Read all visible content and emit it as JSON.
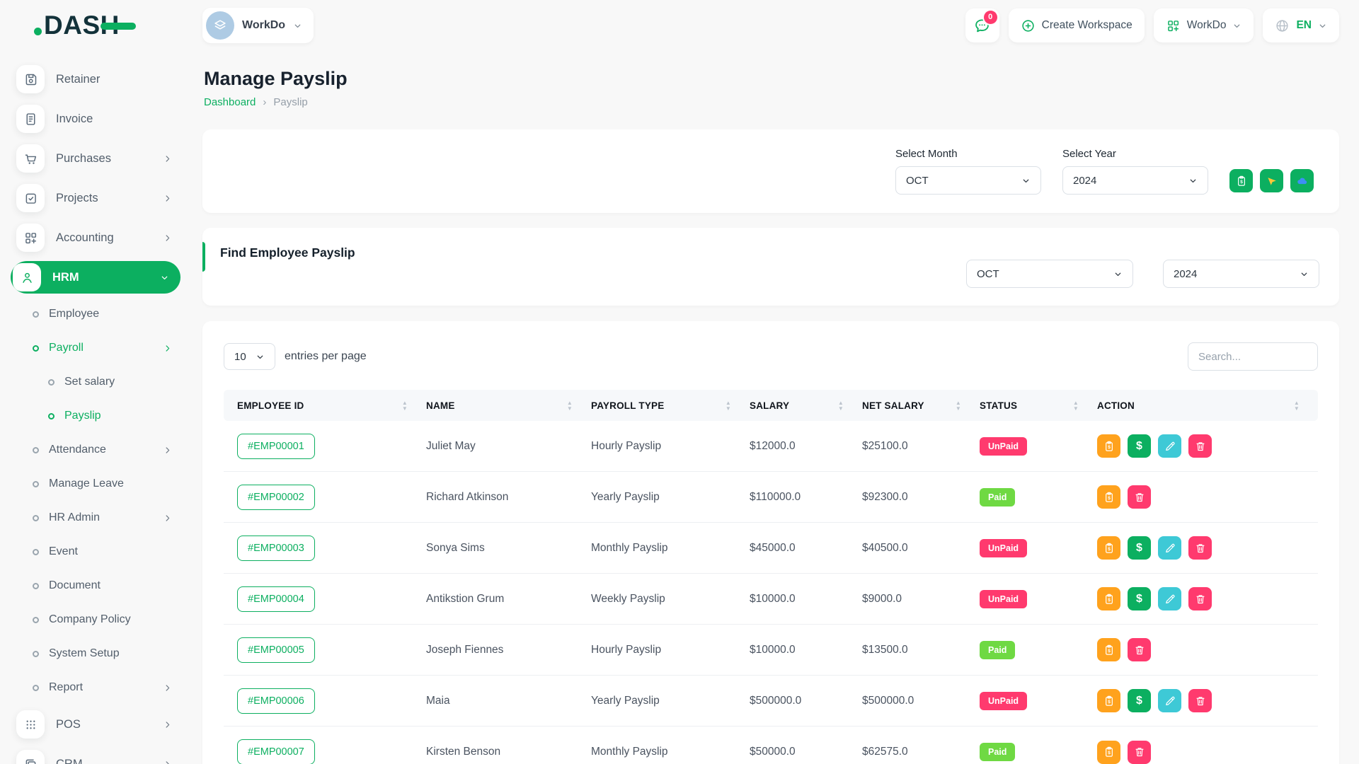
{
  "brand": {
    "name": "DASH"
  },
  "topbar": {
    "workspace_label": "WorkDo",
    "chat_badge": "0",
    "create_workspace_label": "Create Workspace",
    "workdo_label": "WorkDo",
    "language_label": "EN"
  },
  "page": {
    "title": "Manage Payslip",
    "breadcrumb": [
      "Dashboard",
      "Payslip"
    ],
    "breadcrumb_sep": "›"
  },
  "filters": {
    "select_month_label": "Select Month",
    "select_month_value": "OCT",
    "select_year_label": "Select Year",
    "select_year_value": "2024"
  },
  "find_card": {
    "title": "Find Employee Payslip",
    "month_value": "OCT",
    "year_value": "2024"
  },
  "table_controls": {
    "entries_value": "10",
    "entries_label": "entries per page",
    "search_placeholder": "Search..."
  },
  "icons": {
    "dollar_glyph": "$",
    "sort_up": "▲",
    "sort_down": "▼"
  },
  "table": {
    "columns": [
      "EMPLOYEE ID",
      "NAME",
      "PAYROLL TYPE",
      "SALARY",
      "NET SALARY",
      "STATUS",
      "ACTION"
    ],
    "rows": [
      {
        "id": "#EMP00001",
        "name": "Juliet May",
        "type": "Hourly Payslip",
        "salary": "$12000.0",
        "net": "$25100.0",
        "status": "UnPaid",
        "actions": [
          "payslip",
          "pay",
          "edit",
          "delete"
        ]
      },
      {
        "id": "#EMP00002",
        "name": "Richard Atkinson",
        "type": "Yearly Payslip",
        "salary": "$110000.0",
        "net": "$92300.0",
        "status": "Paid",
        "actions": [
          "payslip",
          "delete"
        ]
      },
      {
        "id": "#EMP00003",
        "name": "Sonya Sims",
        "type": "Monthly Payslip",
        "salary": "$45000.0",
        "net": "$40500.0",
        "status": "UnPaid",
        "actions": [
          "payslip",
          "pay",
          "edit",
          "delete"
        ]
      },
      {
        "id": "#EMP00004",
        "name": "Antikstion Grum",
        "type": "Weekly Payslip",
        "salary": "$10000.0",
        "net": "$9000.0",
        "status": "UnPaid",
        "actions": [
          "payslip",
          "pay",
          "edit",
          "delete"
        ]
      },
      {
        "id": "#EMP00005",
        "name": "Joseph Fiennes",
        "type": "Hourly Payslip",
        "salary": "$10000.0",
        "net": "$13500.0",
        "status": "Paid",
        "actions": [
          "payslip",
          "delete"
        ]
      },
      {
        "id": "#EMP00006",
        "name": "Maia",
        "type": "Yearly Payslip",
        "salary": "$500000.0",
        "net": "$500000.0",
        "status": "UnPaid",
        "actions": [
          "payslip",
          "pay",
          "edit",
          "delete"
        ]
      },
      {
        "id": "#EMP00007",
        "name": "Kirsten Benson",
        "type": "Monthly Payslip",
        "salary": "$50000.0",
        "net": "$62575.0",
        "status": "Paid",
        "actions": [
          "payslip",
          "delete"
        ]
      }
    ]
  },
  "sidebar": {
    "items": [
      {
        "label": "Retainer",
        "icon": "save",
        "level": 0
      },
      {
        "label": "Invoice",
        "icon": "doc",
        "level": 0
      },
      {
        "label": "Purchases",
        "icon": "cart",
        "level": 0,
        "chevron": "right"
      },
      {
        "label": "Projects",
        "icon": "check",
        "level": 0,
        "chevron": "right"
      },
      {
        "label": "Accounting",
        "icon": "gridplus",
        "level": 0,
        "chevron": "right"
      },
      {
        "label": "HRM",
        "icon": "hrm",
        "level": 0,
        "chevron": "down",
        "active": true
      },
      {
        "label": "Employee",
        "level": 1
      },
      {
        "label": "Payroll",
        "level": 1,
        "chevron": "right",
        "highlight": true
      },
      {
        "label": "Set salary",
        "level": 2
      },
      {
        "label": "Payslip",
        "level": 2,
        "highlight": true
      },
      {
        "label": "Attendance",
        "level": 1,
        "chevron": "right"
      },
      {
        "label": "Manage Leave",
        "level": 1
      },
      {
        "label": "HR Admin",
        "level": 1,
        "chevron": "right"
      },
      {
        "label": "Event",
        "level": 1
      },
      {
        "label": "Document",
        "level": 1
      },
      {
        "label": "Company Policy",
        "level": 1
      },
      {
        "label": "System Setup",
        "level": 1
      },
      {
        "label": "Report",
        "level": 1,
        "chevron": "right"
      },
      {
        "label": "POS",
        "icon": "dots",
        "level": 0,
        "chevron": "right"
      },
      {
        "label": "CRM",
        "icon": "crm",
        "level": 0,
        "chevron": "right"
      }
    ]
  },
  "colors": {
    "primary": "#0CAF60",
    "paid": "#6FD943",
    "unpaid": "#FF3A6E",
    "warning": "#FFA21D",
    "info": "#3EC9D6"
  }
}
